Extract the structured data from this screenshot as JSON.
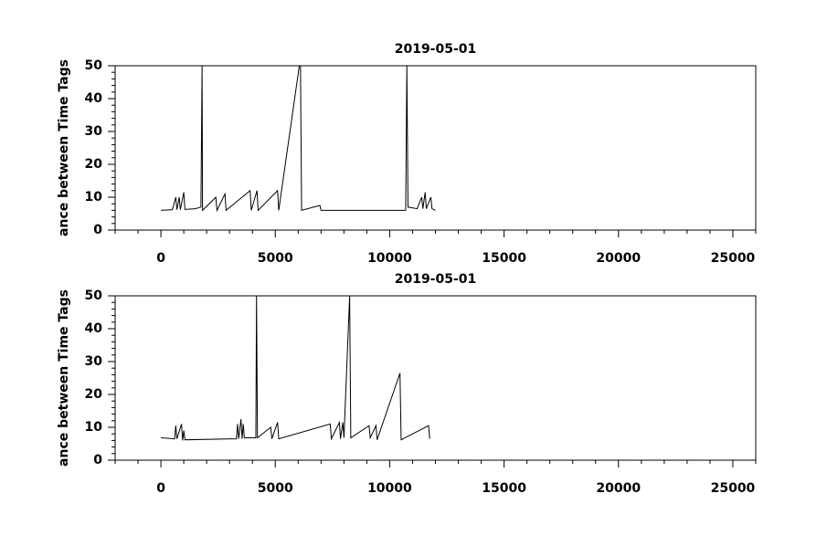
{
  "chart_data": [
    {
      "type": "line",
      "title": "2019-05-01",
      "y_label": "ance between Time Tags",
      "xlim": [
        -2000,
        26000
      ],
      "ylim": [
        0,
        50
      ],
      "xticks": [
        0,
        5000,
        10000,
        15000,
        20000,
        25000
      ],
      "xminorticks": [
        -2000,
        -1000,
        1000,
        2000,
        3000,
        4000,
        6000,
        7000,
        8000,
        9000,
        11000,
        12000,
        13000,
        14000,
        16000,
        17000,
        18000,
        19000,
        21000,
        22000,
        23000,
        24000,
        26000
      ],
      "yticks": [
        0,
        10,
        20,
        30,
        40,
        50
      ],
      "yminorticks": [
        2,
        4,
        6,
        8,
        12,
        14,
        16,
        18,
        22,
        24,
        26,
        28,
        32,
        34,
        36,
        38,
        42,
        44,
        46,
        48
      ],
      "series": [
        {
          "color": "#000000",
          "x": [
            0,
            500,
            650,
            700,
            800,
            850,
            1000,
            1050,
            1500,
            1750,
            1800,
            1820,
            2400,
            2450,
            2800,
            2850,
            3900,
            3950,
            4200,
            4250,
            5100,
            5150,
            6050,
            6100,
            6150,
            6950,
            7000,
            10700,
            10750,
            10800,
            11200,
            11400,
            11450,
            11550,
            11600,
            11800,
            11850,
            12000
          ],
          "values": [
            6,
            6.2,
            10,
            6.2,
            10,
            6.2,
            11.5,
            6.3,
            6.5,
            7,
            50,
            6,
            10,
            6,
            11,
            6,
            12,
            6,
            12,
            6,
            12,
            6,
            50,
            50,
            6,
            7.5,
            6,
            6,
            50,
            7,
            6.5,
            10,
            6.5,
            11.5,
            6.5,
            10,
            6.5,
            6
          ]
        }
      ]
    },
    {
      "type": "line",
      "title": "2019-05-01",
      "y_label": "ance between Time Tags",
      "xlim": [
        -2000,
        26000
      ],
      "ylim": [
        0,
        50
      ],
      "xticks": [
        0,
        5000,
        10000,
        15000,
        20000,
        25000
      ],
      "xminorticks": [
        -2000,
        -1000,
        1000,
        2000,
        3000,
        4000,
        6000,
        7000,
        8000,
        9000,
        11000,
        12000,
        13000,
        14000,
        16000,
        17000,
        18000,
        19000,
        21000,
        22000,
        23000,
        24000,
        26000
      ],
      "yticks": [
        0,
        10,
        20,
        30,
        40,
        50
      ],
      "yminorticks": [
        2,
        4,
        6,
        8,
        12,
        14,
        16,
        18,
        22,
        24,
        26,
        28,
        32,
        34,
        36,
        38,
        42,
        44,
        46,
        48
      ],
      "series": [
        {
          "color": "#000000",
          "x": [
            0,
            600,
            650,
            700,
            900,
            950,
            1000,
            1050,
            3300,
            3350,
            3400,
            3500,
            3550,
            3600,
            3650,
            4150,
            4180,
            4220,
            4800,
            4850,
            5100,
            5150,
            7400,
            7450,
            7800,
            7850,
            7950,
            8000,
            8250,
            8300,
            9100,
            9150,
            9400,
            9450,
            10450,
            10500,
            11700,
            11750
          ],
          "values": [
            6.8,
            6.5,
            10.5,
            6.5,
            11,
            6,
            9,
            6.2,
            6.5,
            11,
            6.5,
            12.5,
            6.5,
            11,
            6.8,
            6.8,
            50,
            6.8,
            10,
            6.5,
            11.5,
            6.5,
            11,
            6.5,
            11.5,
            6.5,
            11.5,
            6.8,
            50,
            6.8,
            10.5,
            6.8,
            10.5,
            6.2,
            26.5,
            6.2,
            10.5,
            6.5
          ]
        }
      ]
    }
  ]
}
